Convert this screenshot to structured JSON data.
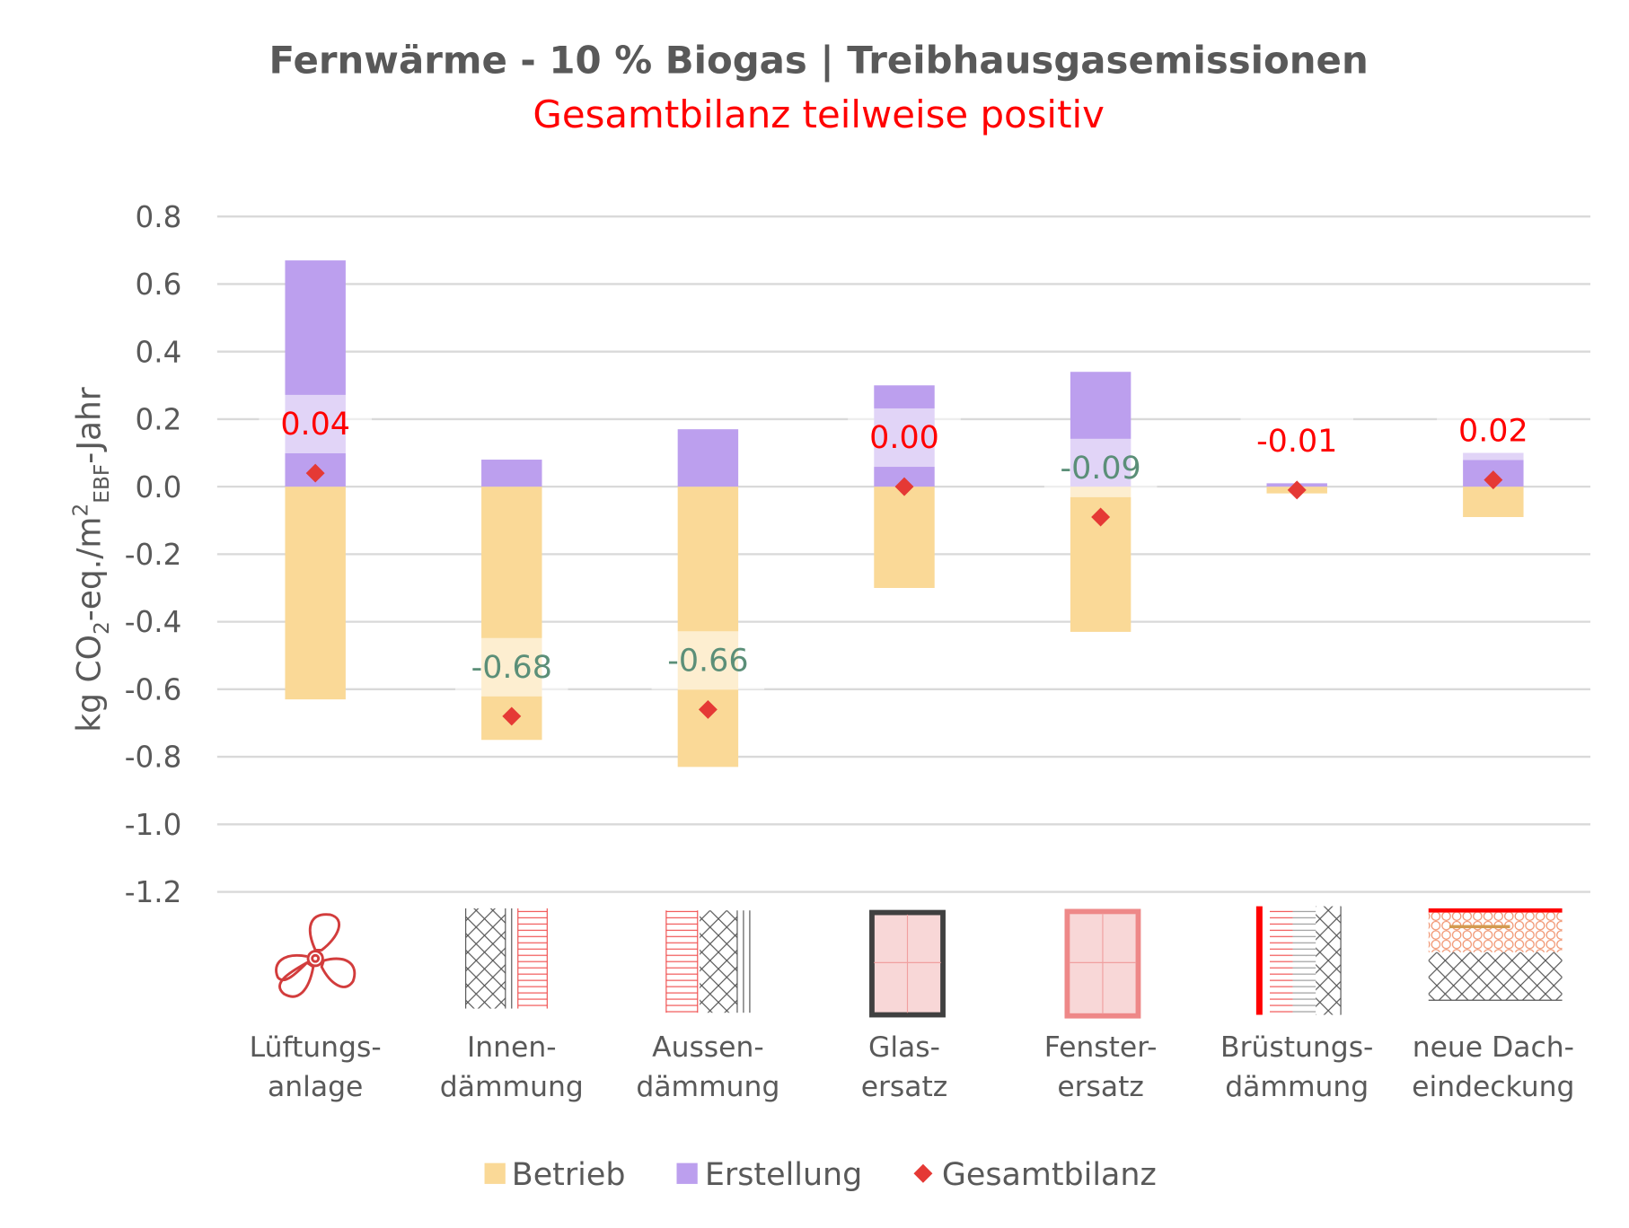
{
  "chart_data": {
    "type": "bar",
    "stacked": true,
    "title": "Fernwärme - 10 % Biogas | Treibhausgasemissionen",
    "subtitle": "Gesamtbilanz teilweise positiv",
    "ylabel": {
      "main": "kg CO",
      "sub1": "2",
      "mid": "-eq./m",
      "sup": "2",
      "sub2": "EBF",
      "end": "-Jahr"
    },
    "ylim": [
      -1.2,
      0.8
    ],
    "yticks": [
      "0.8",
      "0.6",
      "0.4",
      "0.2",
      "0.0",
      "-0.2",
      "-0.4",
      "-0.6",
      "-0.8",
      "-1.0",
      "-1.2"
    ],
    "ytick_values": [
      0.8,
      0.6,
      0.4,
      0.2,
      0,
      -0.2,
      -0.4,
      -0.6,
      -0.8,
      -1.0,
      -1.2
    ],
    "grid": true,
    "categories": [
      [
        "Lüftungs-",
        "anlage"
      ],
      [
        "Innen-",
        "dämmung"
      ],
      [
        "Aussen-",
        "dämmung"
      ],
      [
        "Glas-",
        "ersatz"
      ],
      [
        "Fenster-",
        "ersatz"
      ],
      [
        "Brüstungs-",
        "dämmung"
      ],
      [
        "neue Dach-",
        "eindeckung"
      ]
    ],
    "category_icons": [
      "fan-icon",
      "interior-insulation-icon",
      "exterior-insulation-icon",
      "glass-replacement-icon",
      "window-replacement-icon",
      "parapet-insulation-icon",
      "roof-covering-icon"
    ],
    "series": [
      {
        "name": "Betrieb",
        "type": "bar",
        "color": "#FAD997",
        "values": [
          -0.63,
          -0.75,
          -0.83,
          -0.3,
          -0.43,
          -0.02,
          -0.09
        ]
      },
      {
        "name": "Erstellung",
        "type": "bar",
        "color": "#BC9FEE",
        "values": [
          0.67,
          0.08,
          0.17,
          0.3,
          0.34,
          0.01,
          0.1
        ]
      },
      {
        "name": "Gesamtbilanz",
        "type": "marker",
        "marker": "diamond",
        "color": "#E53935",
        "values": [
          0.04,
          -0.68,
          -0.66,
          0.0,
          -0.09,
          -0.01,
          0.02
        ]
      }
    ],
    "data_labels": [
      "0.04",
      "-0.68",
      "-0.66",
      "0.00",
      "-0.09",
      "-0.01",
      "0.02"
    ],
    "data_label_colors": [
      "#FF0000",
      "#5B8F78",
      "#5B8F78",
      "#FF0000",
      "#5B8F78",
      "#FF0000",
      "#FF0000"
    ],
    "legend": {
      "position": "bottom",
      "items": [
        "Betrieb",
        "Erstellung",
        "Gesamtbilanz"
      ]
    },
    "colors": {
      "title": "#595959",
      "subtitle": "#FF0000",
      "grid": "#D9D9D9",
      "icon_red": "#E04848"
    }
  }
}
